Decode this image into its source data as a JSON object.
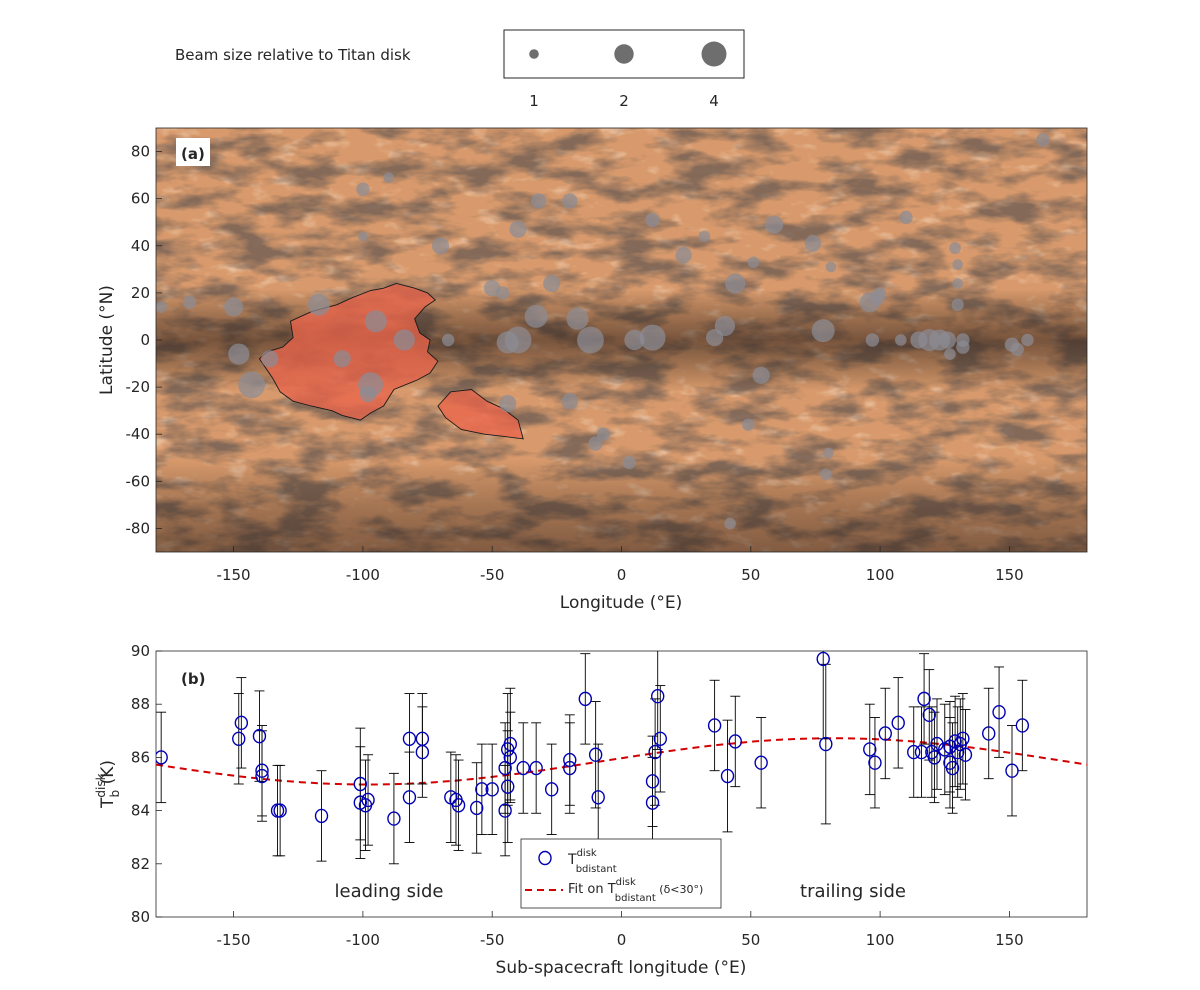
{
  "legend_top": {
    "title": "Beam size relative to Titan disk",
    "sizes": [
      1,
      2,
      4
    ],
    "labels": [
      "1",
      "2",
      "4"
    ],
    "marker_color": "#6e6e6e"
  },
  "colors": {
    "map_base": "#d89a6c",
    "map_dark": "#3a2a22",
    "region_fill": "#e8644a",
    "beam_dot": "#8c8c94",
    "marker": "#0000b4",
    "fit": "#d40000",
    "errorbar": "#000000"
  },
  "chart_data": [
    {
      "panel_label": "(a)",
      "type": "scatter",
      "xlabel": "Longitude (°E)",
      "ylabel": "Latitude (°N)",
      "xlim": [
        -180,
        180
      ],
      "ylim": [
        -90,
        90
      ],
      "xticks": [
        "-150",
        "-100",
        "-50",
        "0",
        "50",
        "100",
        "150"
      ],
      "xtick_values": [
        -150,
        -100,
        -50,
        0,
        50,
        100,
        150
      ],
      "yticks": [
        "80",
        "60",
        "40",
        "20",
        "0",
        "-20",
        "-40",
        "-60",
        "-80"
      ],
      "ytick_values": [
        80,
        60,
        40,
        20,
        0,
        -20,
        -40,
        -60,
        -80
      ],
      "background": "Titan surface mosaic (equirectangular)",
      "highlighted_regions": [
        {
          "polygon": [
            [
              -128,
              8
            ],
            [
              -120,
              12
            ],
            [
              -110,
              15
            ],
            [
              -104,
              18
            ],
            [
              -97,
              21
            ],
            [
              -92,
              22
            ],
            [
              -87,
              24
            ],
            [
              -80,
              22
            ],
            [
              -75,
              20
            ],
            [
              -72,
              17
            ],
            [
              -76,
              14
            ],
            [
              -80,
              9
            ],
            [
              -78,
              3
            ],
            [
              -74,
              0
            ],
            [
              -75,
              -5
            ],
            [
              -71,
              -9
            ],
            [
              -74,
              -14
            ],
            [
              -79,
              -17
            ],
            [
              -88,
              -21
            ],
            [
              -92,
              -28
            ],
            [
              -97,
              -31
            ],
            [
              -101,
              -34
            ],
            [
              -108,
              -32
            ],
            [
              -112,
              -30
            ],
            [
              -120,
              -28
            ],
            [
              -127,
              -26
            ],
            [
              -132,
              -22
            ],
            [
              -135,
              -16
            ],
            [
              -140,
              -8
            ],
            [
              -137,
              -5
            ],
            [
              -131,
              -3
            ],
            [
              -127,
              1
            ]
          ]
        },
        {
          "polygon": [
            [
              -66,
              -22
            ],
            [
              -58,
              -21
            ],
            [
              -52,
              -26
            ],
            [
              -46,
              -29
            ],
            [
              -40,
              -34
            ],
            [
              -38,
              -42
            ],
            [
              -45,
              -41
            ],
            [
              -53,
              -40
            ],
            [
              -62,
              -38
            ],
            [
              -68,
              -33
            ],
            [
              -71,
              -28
            ]
          ]
        }
      ],
      "beam_points": [
        {
          "lon": -178,
          "lat": 14,
          "size": 1.2
        },
        {
          "lon": -167,
          "lat": 16,
          "size": 1.4
        },
        {
          "lon": -150,
          "lat": 14,
          "size": 2
        },
        {
          "lon": -148,
          "lat": -6,
          "size": 2.2
        },
        {
          "lon": -143,
          "lat": -19,
          "size": 2.8
        },
        {
          "lon": -136,
          "lat": -8,
          "size": 1.8
        },
        {
          "lon": -117,
          "lat": 15,
          "size": 2.3
        },
        {
          "lon": -108,
          "lat": -8,
          "size": 1.8
        },
        {
          "lon": -97,
          "lat": -19,
          "size": 2.6
        },
        {
          "lon": -98,
          "lat": -23,
          "size": 1.7
        },
        {
          "lon": -95,
          "lat": 8,
          "size": 2.3
        },
        {
          "lon": -84,
          "lat": 0,
          "size": 2.2
        },
        {
          "lon": -100,
          "lat": 64,
          "size": 1.4
        },
        {
          "lon": -90,
          "lat": 69,
          "size": 1.1
        },
        {
          "lon": -100,
          "lat": 44,
          "size": 1
        },
        {
          "lon": -70,
          "lat": 40,
          "size": 1.8
        },
        {
          "lon": -67,
          "lat": 0,
          "size": 1.3
        },
        {
          "lon": -50,
          "lat": 22,
          "size": 1.7
        },
        {
          "lon": -46,
          "lat": 20,
          "size": 1.4
        },
        {
          "lon": -44,
          "lat": -27,
          "size": 1.8
        },
        {
          "lon": -44,
          "lat": -1,
          "size": 2.3
        },
        {
          "lon": -40,
          "lat": 0,
          "size": 2.8
        },
        {
          "lon": -33,
          "lat": 10,
          "size": 2.4
        },
        {
          "lon": -27,
          "lat": 24,
          "size": 1.8
        },
        {
          "lon": -40,
          "lat": 47,
          "size": 1.8
        },
        {
          "lon": -32,
          "lat": 59,
          "size": 1.6
        },
        {
          "lon": -20,
          "lat": 59,
          "size": 1.6
        },
        {
          "lon": -20,
          "lat": -26,
          "size": 1.7
        },
        {
          "lon": -17,
          "lat": 9,
          "size": 2.3
        },
        {
          "lon": -12,
          "lat": 0,
          "size": 2.8
        },
        {
          "lon": -10,
          "lat": -44,
          "size": 1.5
        },
        {
          "lon": -7,
          "lat": -40,
          "size": 1.4
        },
        {
          "lon": 3,
          "lat": -52,
          "size": 1.4
        },
        {
          "lon": 5,
          "lat": 0,
          "size": 2.1
        },
        {
          "lon": 12,
          "lat": 1,
          "size": 2.7
        },
        {
          "lon": 12,
          "lat": 51,
          "size": 1.5
        },
        {
          "lon": 24,
          "lat": 36,
          "size": 1.7
        },
        {
          "lon": 32,
          "lat": 44,
          "size": 1.2
        },
        {
          "lon": 36,
          "lat": 1,
          "size": 1.8
        },
        {
          "lon": 40,
          "lat": 6,
          "size": 2.1
        },
        {
          "lon": 44,
          "lat": 24,
          "size": 2.1
        },
        {
          "lon": 51,
          "lat": 33,
          "size": 1.2
        },
        {
          "lon": 54,
          "lat": -15,
          "size": 1.8
        },
        {
          "lon": 49,
          "lat": -36,
          "size": 1.3
        },
        {
          "lon": 59,
          "lat": 49,
          "size": 1.9
        },
        {
          "lon": 42,
          "lat": -78,
          "size": 1.2
        },
        {
          "lon": 74,
          "lat": 41,
          "size": 1.7
        },
        {
          "lon": 78,
          "lat": 4,
          "size": 2.4
        },
        {
          "lon": 81,
          "lat": 31,
          "size": 1.1
        },
        {
          "lon": 80,
          "lat": -48,
          "size": 1.1
        },
        {
          "lon": 79,
          "lat": -57,
          "size": 1.2
        },
        {
          "lon": 96,
          "lat": 16,
          "size": 2.1
        },
        {
          "lon": 99,
          "lat": 18,
          "size": 1.6
        },
        {
          "lon": 100,
          "lat": 20,
          "size": 1.2
        },
        {
          "lon": 97,
          "lat": 0,
          "size": 1.4
        },
        {
          "lon": 108,
          "lat": 0,
          "size": 1.2
        },
        {
          "lon": 110,
          "lat": 52,
          "size": 1.4
        },
        {
          "lon": 115,
          "lat": 0,
          "size": 1.8
        },
        {
          "lon": 119,
          "lat": 0,
          "size": 2.3
        },
        {
          "lon": 123,
          "lat": 0,
          "size": 2.2
        },
        {
          "lon": 126,
          "lat": 0,
          "size": 1.8
        },
        {
          "lon": 129,
          "lat": 39,
          "size": 1.2
        },
        {
          "lon": 130,
          "lat": 32,
          "size": 1.1
        },
        {
          "lon": 130,
          "lat": 24,
          "size": 1.1
        },
        {
          "lon": 130,
          "lat": 15,
          "size": 1.3
        },
        {
          "lon": 127,
          "lat": -6,
          "size": 1.2
        },
        {
          "lon": 132,
          "lat": -3,
          "size": 1.4
        },
        {
          "lon": 132,
          "lat": 0,
          "size": 1.4
        },
        {
          "lon": 151,
          "lat": -2,
          "size": 1.5
        },
        {
          "lon": 153,
          "lat": -4,
          "size": 1.4
        },
        {
          "lon": 157,
          "lat": 0,
          "size": 1.3
        },
        {
          "lon": 163,
          "lat": 85,
          "size": 1.4
        }
      ]
    },
    {
      "panel_label": "(b)",
      "type": "scatter",
      "xlabel": "Sub-spacecraft longitude (°E)",
      "ylabel_main": "T",
      "ylabel_sup": "disk",
      "ylabel_sub": "b",
      "ylabel_unit": " (K)",
      "xlim": [
        -180,
        180
      ],
      "ylim": [
        80,
        90
      ],
      "xticks": [
        "-150",
        "-100",
        "-50",
        "0",
        "50",
        "100",
        "150"
      ],
      "xtick_values": [
        -150,
        -100,
        -50,
        0,
        50,
        100,
        150
      ],
      "yticks": [
        "90",
        "88",
        "86",
        "84",
        "82",
        "80"
      ],
      "ytick_values": [
        90,
        88,
        86,
        84,
        82,
        80
      ],
      "annotations": [
        "leading side",
        "trailing side"
      ],
      "legend": {
        "location": "bottom-center",
        "entries": [
          {
            "prefix": "T",
            "sup": "disk",
            "sub": "bdistant",
            "suffix": ""
          },
          {
            "prefix": "Fit on T",
            "sup": "disk",
            "sub": "bdistant",
            "suffix": " (δ<30°)"
          }
        ]
      },
      "series": [
        {
          "type": "errorbar_scatter",
          "points": [
            {
              "x": -178,
              "y": 86.0,
              "err": 1.7
            },
            {
              "x": -148,
              "y": 86.7,
              "err": 1.7
            },
            {
              "x": -147,
              "y": 87.3,
              "err": 1.7
            },
            {
              "x": -140,
              "y": 86.8,
              "err": 1.7
            },
            {
              "x": -139,
              "y": 85.5,
              "err": 1.7
            },
            {
              "x": -139,
              "y": 85.3,
              "err": 1.7
            },
            {
              "x": -133,
              "y": 84.0,
              "err": 1.7
            },
            {
              "x": -132,
              "y": 84.0,
              "err": 1.7
            },
            {
              "x": -116,
              "y": 83.8,
              "err": 1.7
            },
            {
              "x": -101,
              "y": 85.0,
              "err": 2.1
            },
            {
              "x": -101,
              "y": 84.3,
              "err": 2.1
            },
            {
              "x": -99,
              "y": 84.2,
              "err": 1.7
            },
            {
              "x": -98,
              "y": 84.4,
              "err": 1.7
            },
            {
              "x": -88,
              "y": 83.7,
              "err": 1.7
            },
            {
              "x": -82,
              "y": 86.7,
              "err": 1.7
            },
            {
              "x": -82,
              "y": 84.5,
              "err": 1.7
            },
            {
              "x": -77,
              "y": 86.7,
              "err": 1.7
            },
            {
              "x": -77,
              "y": 86.2,
              "err": 1.7
            },
            {
              "x": -66,
              "y": 84.5,
              "err": 1.7
            },
            {
              "x": -64,
              "y": 84.4,
              "err": 1.7
            },
            {
              "x": -63,
              "y": 84.2,
              "err": 1.7
            },
            {
              "x": -56,
              "y": 84.1,
              "err": 1.7
            },
            {
              "x": -54,
              "y": 84.8,
              "err": 1.7
            },
            {
              "x": -50,
              "y": 84.8,
              "err": 1.7
            },
            {
              "x": -45,
              "y": 85.6,
              "err": 1.7
            },
            {
              "x": -45,
              "y": 84.0,
              "err": 1.7
            },
            {
              "x": -44,
              "y": 86.3,
              "err": 2.1
            },
            {
              "x": -44,
              "y": 84.9,
              "err": 2.1
            },
            {
              "x": -43,
              "y": 86.5,
              "err": 2.1
            },
            {
              "x": -43,
              "y": 86.0,
              "err": 1.7
            },
            {
              "x": -38,
              "y": 85.6,
              "err": 1.7
            },
            {
              "x": -33,
              "y": 85.6,
              "err": 1.7
            },
            {
              "x": -27,
              "y": 84.8,
              "err": 1.7
            },
            {
              "x": -20,
              "y": 85.9,
              "err": 1.7
            },
            {
              "x": -20,
              "y": 85.6,
              "err": 1.7
            },
            {
              "x": -14,
              "y": 88.2,
              "err": 1.7
            },
            {
              "x": -10,
              "y": 86.1,
              "err": 2.0
            },
            {
              "x": -9,
              "y": 84.5,
              "err": 2.0
            },
            {
              "x": 12,
              "y": 84.3,
              "err": 1.7
            },
            {
              "x": 12,
              "y": 85.1,
              "err": 1.7
            },
            {
              "x": 13,
              "y": 86.2,
              "err": 2.0
            },
            {
              "x": 14,
              "y": 88.3,
              "err": 2.0
            },
            {
              "x": 15,
              "y": 86.7,
              "err": 2.0
            },
            {
              "x": 36,
              "y": 87.2,
              "err": 1.7
            },
            {
              "x": 41,
              "y": 85.3,
              "err": 2.1
            },
            {
              "x": 44,
              "y": 86.6,
              "err": 1.7
            },
            {
              "x": 54,
              "y": 85.8,
              "err": 1.7
            },
            {
              "x": 78,
              "y": 89.7,
              "err": 3.0
            },
            {
              "x": 79,
              "y": 86.5,
              "err": 3.0
            },
            {
              "x": 96,
              "y": 86.3,
              "err": 1.7
            },
            {
              "x": 98,
              "y": 85.8,
              "err": 1.7
            },
            {
              "x": 102,
              "y": 86.9,
              "err": 1.7
            },
            {
              "x": 107,
              "y": 87.3,
              "err": 1.7
            },
            {
              "x": 113,
              "y": 86.2,
              "err": 1.7
            },
            {
              "x": 116,
              "y": 86.2,
              "err": 1.7
            },
            {
              "x": 117,
              "y": 88.2,
              "err": 1.7
            },
            {
              "x": 119,
              "y": 87.6,
              "err": 1.7
            },
            {
              "x": 120,
              "y": 86.2,
              "err": 1.7
            },
            {
              "x": 121,
              "y": 86.0,
              "err": 1.7
            },
            {
              "x": 122,
              "y": 86.5,
              "err": 1.7
            },
            {
              "x": 125,
              "y": 86.3,
              "err": 1.7
            },
            {
              "x": 127,
              "y": 86.4,
              "err": 1.7
            },
            {
              "x": 127,
              "y": 85.8,
              "err": 1.7
            },
            {
              "x": 128,
              "y": 85.6,
              "err": 1.7
            },
            {
              "x": 129,
              "y": 86.6,
              "err": 1.7
            },
            {
              "x": 130,
              "y": 86.2,
              "err": 1.7
            },
            {
              "x": 131,
              "y": 86.5,
              "err": 1.7
            },
            {
              "x": 132,
              "y": 86.7,
              "err": 1.7
            },
            {
              "x": 133,
              "y": 86.1,
              "err": 1.7
            },
            {
              "x": 142,
              "y": 86.9,
              "err": 1.7
            },
            {
              "x": 146,
              "y": 87.7,
              "err": 1.7
            },
            {
              "x": 151,
              "y": 85.5,
              "err": 1.7
            },
            {
              "x": 155,
              "y": 87.2,
              "err": 1.7
            }
          ]
        },
        {
          "type": "fit_curve",
          "function": "mean + amp*cos(lon - peak_lon)",
          "mean": 85.85,
          "amp": 0.87,
          "peak_lon": 82
        }
      ]
    }
  ]
}
